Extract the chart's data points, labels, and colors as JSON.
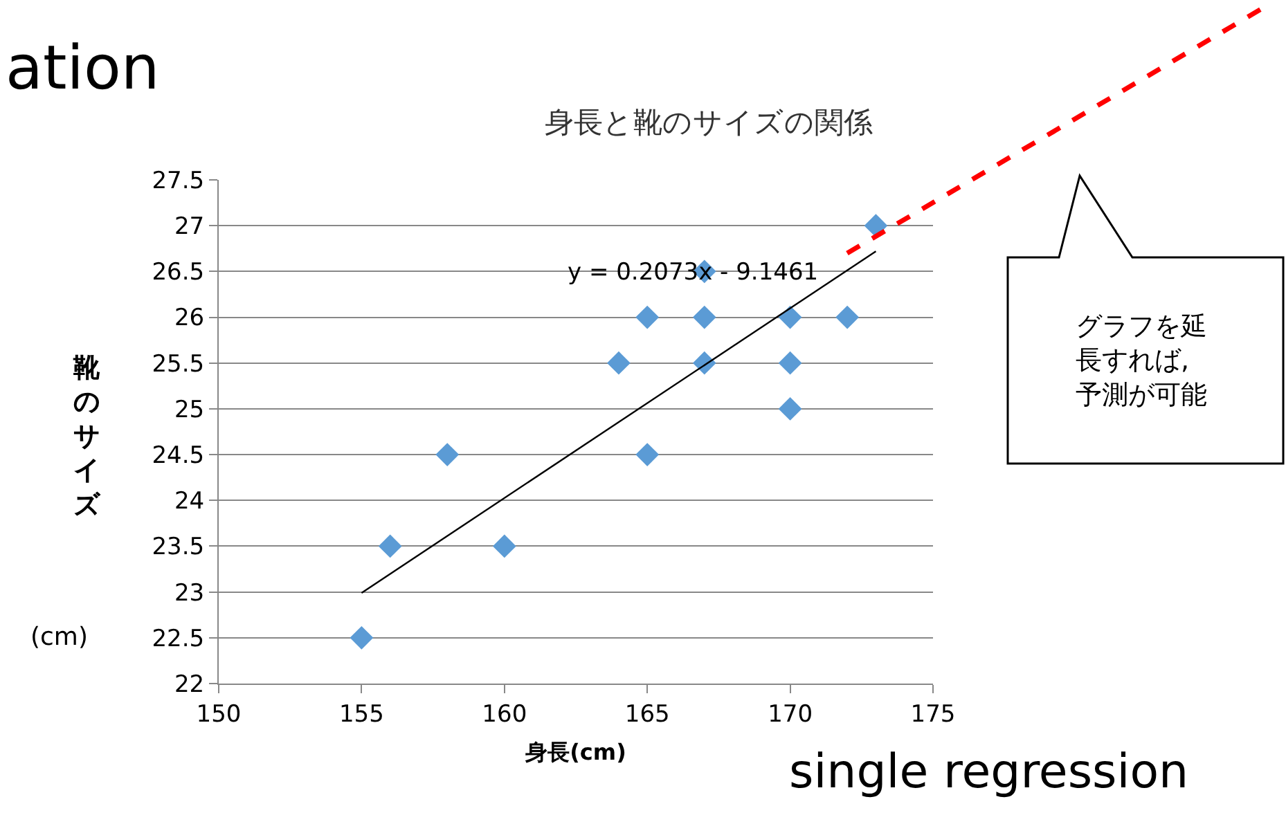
{
  "chart_data": {
    "type": "scatter",
    "title": "身長と靴のサイズの関係",
    "xlabel": "身長(cm)",
    "ylabel": "靴のサイズ",
    "x": [
      155,
      156,
      158,
      160,
      164,
      165,
      165,
      167,
      167,
      167,
      170,
      170,
      170,
      172,
      173
    ],
    "series": [
      {
        "color": "#5b9bd5",
        "marker": "diamond",
        "values": [
          22.5,
          23.5,
          24.5,
          23.5,
          25.5,
          26,
          24.5,
          26.5,
          26,
          25.5,
          26,
          25.5,
          25,
          26,
          27
        ]
      },
      {
        "type": "line",
        "color": "#000000",
        "marker": "none",
        "line_style": "solid",
        "x": [
          155,
          173
        ],
        "values": [
          22.99,
          26.72
        ]
      }
    ],
    "xlim": [
      150,
      175
    ],
    "xticks": [
      150,
      155,
      160,
      165,
      170,
      175
    ],
    "ylim": [
      22,
      27.5
    ],
    "yticks": [
      22,
      22.5,
      23,
      23.5,
      24,
      24.5,
      25,
      25.5,
      26,
      26.5,
      27,
      27.5
    ],
    "grid": "y",
    "annotations": [
      "y = 0.2073x - 9.1461",
      "(cm)",
      "グラフを延長すれば,予測が可能",
      "ation",
      "single regression"
    ]
  }
}
